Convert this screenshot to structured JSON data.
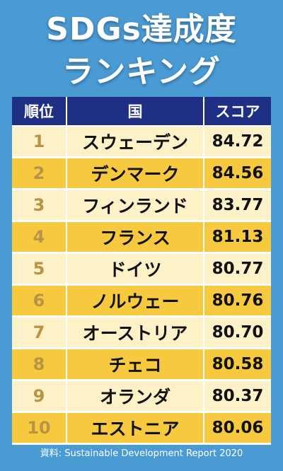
{
  "title_line1": "SDGs達成度",
  "title_line2": "ランキング",
  "headers": {
    "rank": "順位",
    "country": "国",
    "score": "スコア"
  },
  "rows": [
    {
      "rank": "1",
      "country": "スウェーデン",
      "score": "84.72"
    },
    {
      "rank": "2",
      "country": "デンマーク",
      "score": "84.56"
    },
    {
      "rank": "3",
      "country": "フィンランド",
      "score": "83.77"
    },
    {
      "rank": "4",
      "country": "フランス",
      "score": "81.13"
    },
    {
      "rank": "5",
      "country": "ドイツ",
      "score": "80.77"
    },
    {
      "rank": "6",
      "country": "ノルウェー",
      "score": "80.76"
    },
    {
      "rank": "7",
      "country": "オーストリア",
      "score": "80.70"
    },
    {
      "rank": "8",
      "country": "チェコ",
      "score": "80.58"
    },
    {
      "rank": "9",
      "country": "オランダ",
      "score": "80.37"
    },
    {
      "rank": "10",
      "country": "エストニア",
      "score": "80.06"
    }
  ],
  "source": "資料: Sustainable Development Report 2020",
  "colors": {
    "background": "#4a9ad4",
    "header": "#1f2f86",
    "row_light": "#fdf1c8",
    "row_dark": "#f7c93f",
    "rank_text": "#b89445"
  }
}
